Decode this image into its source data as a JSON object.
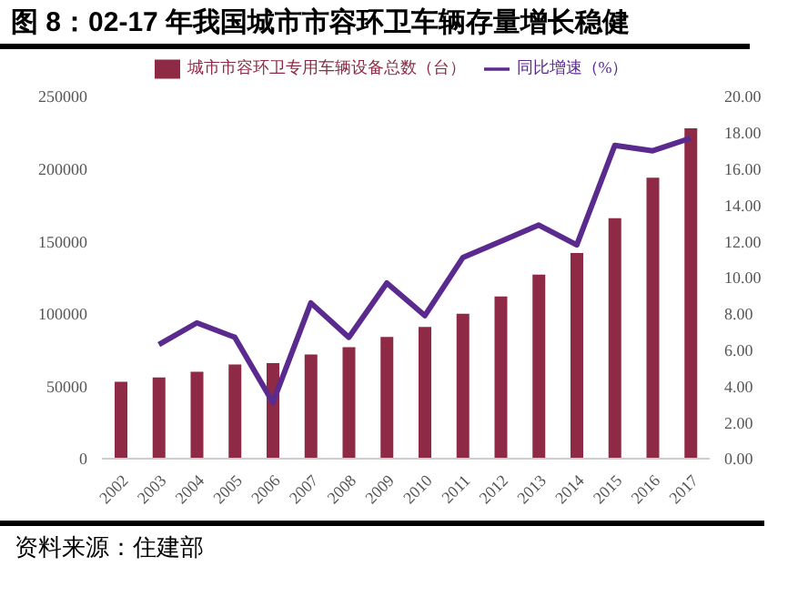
{
  "chart_data": {
    "type": "bar",
    "title": "图 8：02-17 年我国城市市容环卫车辆存量增长稳健",
    "categories": [
      "2002",
      "2003",
      "2004",
      "2005",
      "2006",
      "2007",
      "2008",
      "2009",
      "2010",
      "2011",
      "2012",
      "2013",
      "2014",
      "2015",
      "2016",
      "2017"
    ],
    "series": [
      {
        "name": "城市市容环卫专用车辆设备总数（台）",
        "color": "#8e2a45",
        "values": [
          53000,
          56000,
          60000,
          65000,
          66000,
          72000,
          77000,
          84000,
          91000,
          100000,
          112000,
          127000,
          142000,
          166000,
          194000,
          228000
        ]
      },
      {
        "name": "同比增速（%）",
        "type": "line",
        "axis": "y2",
        "color": "#5b2a8e",
        "values": [
          null,
          6.3,
          7.5,
          6.7,
          3.1,
          8.6,
          6.7,
          9.7,
          7.9,
          11.1,
          12.0,
          12.9,
          11.8,
          17.3,
          17.0,
          17.7
        ]
      }
    ],
    "ylim": [
      0,
      250000
    ],
    "yticks": [
      0,
      50000,
      100000,
      150000,
      200000,
      250000
    ],
    "y2lim": [
      0,
      20
    ],
    "y2ticks": [
      {
        "value": 0,
        "label": "0.00"
      },
      {
        "value": 2,
        "label": "2.00"
      },
      {
        "value": 4,
        "label": "4.00"
      },
      {
        "value": 6,
        "label": "6.00"
      },
      {
        "value": 8,
        "label": "8.00"
      },
      {
        "value": 10,
        "label": "10.00"
      },
      {
        "value": 12,
        "label": "12.00"
      },
      {
        "value": 14,
        "label": "14.00"
      },
      {
        "value": 16,
        "label": "16.00"
      },
      {
        "value": 18,
        "label": "18.00"
      },
      {
        "value": 20,
        "label": "20.00"
      }
    ],
    "legend": "top",
    "grid": false,
    "marker": "none",
    "line_style": "solid",
    "annotations": [
      "资料来源：住建部"
    ]
  }
}
